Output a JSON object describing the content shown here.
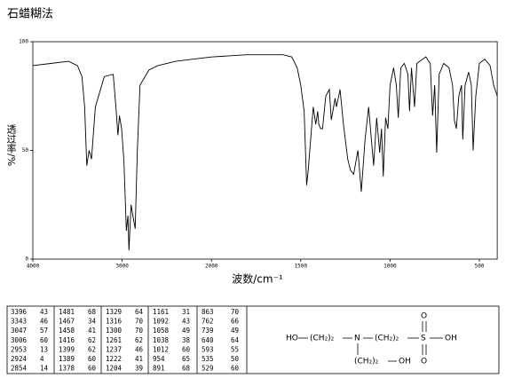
{
  "title": "石蜡糊法",
  "chart_data": {
    "type": "line",
    "xlabel": "波数/cm⁻¹",
    "ylabel": "透过率/%",
    "xlim": [
      4000,
      400
    ],
    "xticks": [
      4000,
      3000,
      2000,
      1500,
      1000,
      500
    ],
    "ylim": [
      0,
      100
    ],
    "yticks": [
      0,
      50,
      100
    ],
    "x": [
      4000,
      3800,
      3600,
      3500,
      3450,
      3420,
      3396,
      3370,
      3343,
      3300,
      3200,
      3100,
      3070,
      3047,
      3030,
      3006,
      2980,
      2953,
      2935,
      2924,
      2900,
      2880,
      2854,
      2830,
      2800,
      2700,
      2600,
      2400,
      2200,
      2000,
      1800,
      1600,
      1550,
      1520,
      1500,
      1481,
      1467,
      1458,
      1440,
      1430,
      1416,
      1405,
      1399,
      1389,
      1378,
      1360,
      1340,
      1329,
      1316,
      1308,
      1300,
      1280,
      1261,
      1237,
      1222,
      1204,
      1180,
      1161,
      1140,
      1120,
      1092,
      1075,
      1058,
      1048,
      1038,
      1025,
      1012,
      1000,
      980,
      965,
      954,
      940,
      920,
      900,
      891,
      880,
      863,
      850,
      800,
      775,
      762,
      750,
      739,
      725,
      700,
      670,
      650,
      640,
      629,
      615,
      600,
      593,
      580,
      560,
      545,
      535,
      520,
      500,
      470,
      440,
      420,
      400
    ],
    "series": [
      {
        "color": "#000000",
        "values": [
          89,
          90,
          91,
          89,
          84,
          70,
          43,
          50,
          46,
          70,
          84,
          85,
          70,
          57,
          66,
          60,
          45,
          13,
          20,
          4,
          25,
          20,
          14,
          50,
          80,
          87,
          89,
          91,
          92,
          93,
          94,
          94,
          93,
          88,
          80,
          68,
          34,
          41,
          60,
          70,
          62,
          68,
          62,
          60,
          60,
          75,
          78,
          64,
          70,
          74,
          70,
          78,
          62,
          46,
          41,
          39,
          50,
          31,
          55,
          70,
          43,
          65,
          49,
          60,
          38,
          65,
          60,
          80,
          88,
          80,
          65,
          88,
          90,
          85,
          68,
          88,
          70,
          90,
          93,
          90,
          66,
          80,
          49,
          85,
          90,
          88,
          80,
          64,
          60,
          75,
          80,
          55,
          80,
          86,
          80,
          50,
          75,
          90,
          92,
          89,
          80,
          75
        ]
      }
    ]
  },
  "peak_table": [
    [
      [
        3396,
        43
      ],
      [
        3343,
        46
      ],
      [
        3047,
        57
      ],
      [
        3006,
        60
      ],
      [
        2953,
        13
      ],
      [
        2924,
        4
      ],
      [
        2854,
        14
      ]
    ],
    [
      [
        1481,
        68
      ],
      [
        1467,
        34
      ],
      [
        1458,
        41
      ],
      [
        1416,
        62
      ],
      [
        1399,
        62
      ],
      [
        1389,
        60
      ],
      [
        1378,
        60
      ]
    ],
    [
      [
        1329,
        64
      ],
      [
        1316,
        70
      ],
      [
        1300,
        70
      ],
      [
        1261,
        62
      ],
      [
        1237,
        46
      ],
      [
        1222,
        41
      ],
      [
        1204,
        39
      ]
    ],
    [
      [
        1161,
        31
      ],
      [
        1092,
        43
      ],
      [
        1058,
        49
      ],
      [
        1038,
        38
      ],
      [
        1012,
        60
      ],
      [
        954,
        65
      ],
      [
        891,
        68
      ]
    ],
    [
      [
        863,
        70
      ],
      [
        762,
        66
      ],
      [
        739,
        49
      ],
      [
        640,
        64
      ],
      [
        593,
        55
      ],
      [
        535,
        50
      ],
      [
        529,
        60
      ]
    ]
  ],
  "structure": {
    "nodes": [
      "HO",
      "(CH₂)₂",
      "N",
      "(CH₂)₂",
      "S",
      "OH",
      "O",
      "O",
      "(CH₂)₂",
      "OH"
    ]
  }
}
